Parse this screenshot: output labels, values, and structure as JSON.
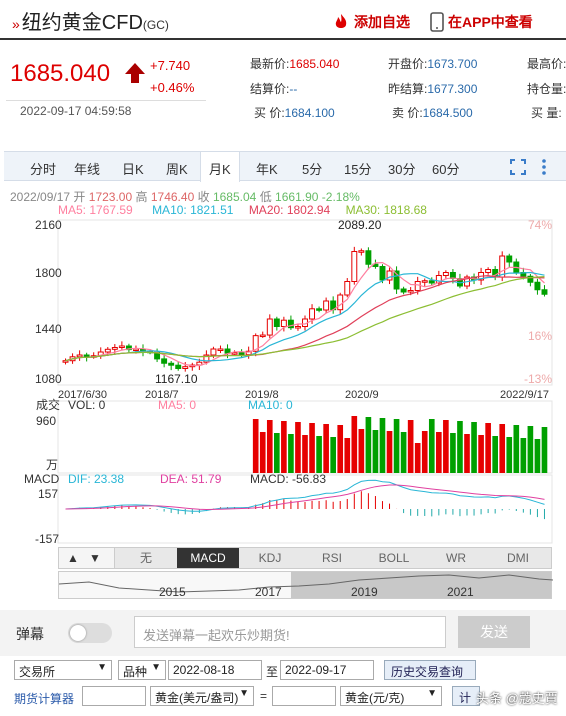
{
  "header": {
    "title_prefix": "»",
    "title": "纽约黄金CFD",
    "symbol": "(GC)",
    "add_watchlist": "添加自选",
    "view_in_app": "在APP中查看"
  },
  "quote": {
    "price": "1685.040",
    "change": "+7.740",
    "change_pct": "+0.46%",
    "timestamp": "2022-09-17 04:59:58",
    "fields": {
      "latest_label": "最新价:",
      "latest": "1685.040",
      "open_label": "开盘价:",
      "open": "1673.700",
      "high_label": "最高价:",
      "settle_label": "结算价:",
      "settle": "--",
      "prev_settle_label": "昨结算:",
      "prev_settle": "1677.300",
      "oi_label": "持仓量:",
      "bid_label": "买  价:",
      "bid": "1684.100",
      "ask_label": "卖  价:",
      "ask": "1684.500",
      "bid2_label": "买  量:"
    }
  },
  "toolbar": {
    "tabs": [
      "分时",
      "年线",
      "日K",
      "周K",
      "月K",
      "年K",
      "5分",
      "15分",
      "30分",
      "60分"
    ],
    "active": "月K",
    "fullscreen_icon": "fullscreen-icon",
    "more_icon": "more-icon"
  },
  "chart_info": {
    "date": "2022/09/17",
    "open_label": "开",
    "open": "1723.00",
    "high_label": "高",
    "high": "1746.40",
    "close_label": "收",
    "close": "1685.04",
    "low_label": "低",
    "low": "1661.90",
    "chg": "-2.18%",
    "ma5": "MA5: 1767.59",
    "ma10": "MA10: 1821.51",
    "ma20": "MA20: 1802.94",
    "ma30": "MA30: 1818.68"
  },
  "chart_data": {
    "type": "candlestick",
    "price_axis": [
      "2160",
      "1800",
      "1440",
      "1080"
    ],
    "pct_axis": [
      "74%",
      "16%",
      "-13%"
    ],
    "date_axis": [
      "2017/6/30",
      "2018/7",
      "2019/8",
      "2020/9",
      "2022/9/17"
    ],
    "peak_label": "2089.20",
    "trough_label": "1167.10",
    "volume_label": "成交",
    "vol_legend": "VOL: 0",
    "vol_ma5": "MA5: 0",
    "vol_ma10": "MA10: 0",
    "vol_axis_top": "960",
    "vol_axis_unit": "万",
    "macd_legend": "MACD",
    "dif": "DIF: 23.38",
    "dea": "DEA: 51.79",
    "macd": "MACD: -56.83",
    "macd_axis_top": "157",
    "macd_axis_bottom": "-157",
    "closes": [
      1242,
      1268,
      1280,
      1270,
      1275,
      1300,
      1318,
      1330,
      1340,
      1316,
      1320,
      1305,
      1300,
      1254,
      1225,
      1212,
      1190,
      1202,
      1213,
      1232,
      1280,
      1320,
      1320,
      1292,
      1296,
      1282,
      1305,
      1409,
      1413,
      1520,
      1470,
      1512,
      1462,
      1470,
      1520,
      1588,
      1580,
      1640,
      1582,
      1680,
      1770,
      1970,
      1975,
      1885,
      1870,
      1780,
      1840,
      1720,
      1700,
      1710,
      1770,
      1775,
      1760,
      1810,
      1830,
      1790,
      1740,
      1800,
      1780,
      1830,
      1850,
      1800,
      1940,
      1900,
      1830,
      1805,
      1765,
      1715,
      1685
    ]
  },
  "indicators": [
    "无",
    "MACD",
    "KDJ",
    "RSI",
    "BOLL",
    "WR",
    "DMI"
  ],
  "indicator_active": "MACD",
  "navigator": {
    "years": [
      "2015",
      "2017",
      "2019",
      "2021"
    ]
  },
  "danmu": {
    "label": "弹幕",
    "placeholder": "发送弹幕一起欢乐炒期货!",
    "send": "发送"
  },
  "history": {
    "exchange": "交易所",
    "variety": "品种",
    "date_from": "2022-08-18",
    "to": "至",
    "date_to": "2022-09-17",
    "query": "历史交易查询"
  },
  "calculator": {
    "label": "期货计算器",
    "unit_from": "黄金(美元/盎司)",
    "eq": "=",
    "unit_to": "黄金(元/克)",
    "btn": "计",
    "watermark": "头条 @蔻史賈"
  },
  "colors": {
    "up": "#e60000",
    "down": "#00a000",
    "ma5": "#ff7f9f",
    "ma10": "#29b6d6",
    "ma20": "#e0405a",
    "ma30": "#8cbe33"
  }
}
